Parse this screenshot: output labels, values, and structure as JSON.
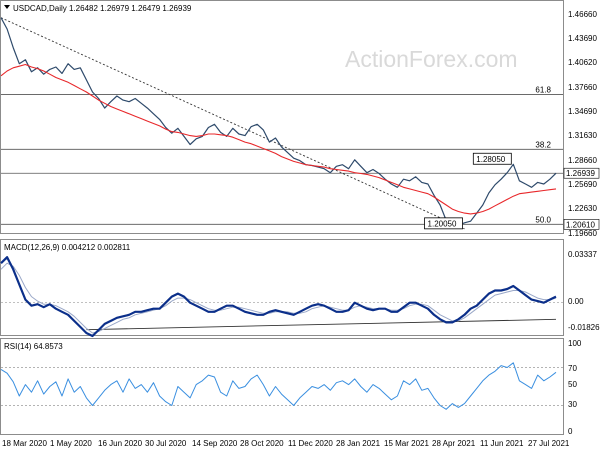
{
  "header": {
    "symbol_text": "USDCAD,Daily  1.26482 1.26979 1.26479 1.26939",
    "watermark": "ActionForex.com"
  },
  "chart_data": [
    {
      "type": "line",
      "title": "USDCAD,Daily  1.26482 1.26979 1.26479 1.26939",
      "series": [
        {
          "name": "price",
          "values": [
            1.462,
            1.448,
            1.425,
            1.405,
            1.41,
            1.395,
            1.4,
            1.392,
            1.398,
            1.401,
            1.393,
            1.405,
            1.398,
            1.4,
            1.385,
            1.37,
            1.362,
            1.35,
            1.358,
            1.365,
            1.36,
            1.358,
            1.362,
            1.356,
            1.35,
            1.343,
            1.336,
            1.326,
            1.319,
            1.325,
            1.315,
            1.305,
            1.312,
            1.315,
            1.326,
            1.33,
            1.32,
            1.315,
            1.325,
            1.318,
            1.316,
            1.327,
            1.33,
            1.323,
            1.308,
            1.313,
            1.302,
            1.295,
            1.288,
            1.285,
            1.28,
            1.279,
            1.277,
            1.275,
            1.27,
            1.278,
            1.28,
            1.275,
            1.286,
            1.278,
            1.27,
            1.274,
            1.269,
            1.262,
            1.256,
            1.252,
            1.262,
            1.26,
            1.265,
            1.258,
            1.256,
            1.242,
            1.23,
            1.211,
            1.208,
            1.205,
            1.208,
            1.21,
            1.22,
            1.23,
            1.245,
            1.255,
            1.262,
            1.27,
            1.2805,
            1.26,
            1.256,
            1.252,
            1.258,
            1.256,
            1.262,
            1.2694
          ]
        },
        {
          "name": "sma",
          "values": [
            1.39,
            1.396,
            1.4,
            1.402,
            1.404,
            1.401,
            1.399,
            1.396,
            1.392,
            1.388,
            1.385,
            1.382,
            1.378,
            1.374,
            1.37,
            1.365,
            1.36,
            1.356,
            1.352,
            1.349,
            1.346,
            1.343,
            1.34,
            1.337,
            1.334,
            1.331,
            1.328,
            1.324,
            1.321,
            1.32,
            1.318,
            1.316,
            1.315,
            1.316,
            1.318,
            1.318,
            1.317,
            1.316,
            1.314,
            1.311,
            1.308,
            1.306,
            1.303,
            1.3,
            1.297,
            1.294,
            1.29,
            1.287,
            1.284,
            1.282,
            1.28,
            1.279,
            1.278,
            1.277,
            1.275,
            1.274,
            1.273,
            1.272,
            1.27,
            1.269,
            1.268,
            1.266,
            1.264,
            1.261,
            1.258,
            1.255,
            1.252,
            1.25,
            1.248,
            1.246,
            1.244,
            1.24,
            1.235,
            1.23,
            1.225,
            1.222,
            1.22,
            1.219,
            1.22,
            1.222,
            1.225,
            1.229,
            1.233,
            1.237,
            1.241,
            1.244,
            1.245,
            1.246,
            1.247,
            1.248,
            1.249,
            1.25
          ]
        }
      ],
      "trendline": [
        {
          "x": 0,
          "y": 1.462
        },
        {
          "x": 76,
          "y": 1.2005
        }
      ],
      "hlines": [
        {
          "label": "61.8",
          "value": 1.367
        },
        {
          "label": "38.2",
          "value": 1.299
        },
        {
          "label": "",
          "value": 1.2694
        },
        {
          "label": "50.0",
          "value": 1.2061
        }
      ],
      "callouts": [
        {
          "label": "1.28050",
          "x": 84,
          "value": 1.2805
        },
        {
          "label": "1.20050",
          "x": 76,
          "value": 1.2005
        }
      ],
      "y_ticks": [
        "1.46660",
        "1.43690",
        "1.40620",
        "1.37660",
        "1.34690",
        "1.31630",
        "1.28660",
        "1.25690",
        "1.22630",
        "1.19660"
      ],
      "price_labels": [
        "1.26939",
        "1.20610"
      ],
      "ylim": [
        1.1966,
        1.4666
      ]
    },
    {
      "type": "line",
      "title": "MACD(12,26,9) 0.004212 0.002811",
      "series": [
        {
          "name": "macd",
          "values": [
            0.026,
            0.03,
            0.022,
            0.012,
            0.002,
            -0.002,
            -0.001,
            -0.003,
            -0.001,
            -0.004,
            -0.006,
            -0.008,
            -0.012,
            -0.016,
            -0.02,
            -0.022,
            -0.018,
            -0.014,
            -0.012,
            -0.01,
            -0.009,
            -0.008,
            -0.006,
            -0.006,
            -0.005,
            -0.004,
            -0.004,
            0.0,
            0.004,
            0.006,
            0.004,
            0.0,
            -0.002,
            -0.004,
            -0.006,
            -0.006,
            -0.004,
            -0.002,
            -0.002,
            -0.004,
            -0.006,
            -0.007,
            -0.008,
            -0.008,
            -0.006,
            -0.005,
            -0.006,
            -0.007,
            -0.008,
            -0.006,
            -0.004,
            -0.002,
            -0.001,
            -0.002,
            -0.004,
            -0.006,
            -0.006,
            -0.005,
            0.0,
            -0.002,
            -0.004,
            -0.005,
            -0.004,
            -0.004,
            -0.006,
            -0.006,
            -0.003,
            0.0,
            0.0,
            -0.002,
            -0.004,
            -0.008,
            -0.011,
            -0.013,
            -0.013,
            -0.011,
            -0.008,
            -0.004,
            -0.002,
            0.002,
            0.006,
            0.008,
            0.008,
            0.009,
            0.011,
            0.008,
            0.005,
            0.002,
            0.001,
            0.0,
            0.002,
            0.004
          ]
        },
        {
          "name": "signal",
          "values": [
            0.022,
            0.026,
            0.024,
            0.018,
            0.01,
            0.004,
            0.001,
            -0.001,
            -0.001,
            -0.002,
            -0.004,
            -0.006,
            -0.009,
            -0.013,
            -0.017,
            -0.02,
            -0.019,
            -0.017,
            -0.015,
            -0.013,
            -0.011,
            -0.01,
            -0.008,
            -0.007,
            -0.006,
            -0.005,
            -0.004,
            -0.002,
            0.001,
            0.003,
            0.003,
            0.002,
            0.0,
            -0.002,
            -0.004,
            -0.005,
            -0.005,
            -0.004,
            -0.003,
            -0.003,
            -0.004,
            -0.005,
            -0.006,
            -0.007,
            -0.007,
            -0.006,
            -0.006,
            -0.006,
            -0.007,
            -0.007,
            -0.006,
            -0.004,
            -0.003,
            -0.002,
            -0.003,
            -0.004,
            -0.005,
            -0.005,
            -0.003,
            -0.002,
            -0.003,
            -0.004,
            -0.004,
            -0.004,
            -0.005,
            -0.005,
            -0.004,
            -0.002,
            -0.001,
            -0.001,
            -0.002,
            -0.005,
            -0.008,
            -0.01,
            -0.012,
            -0.012,
            -0.01,
            -0.007,
            -0.004,
            -0.001,
            0.002,
            0.005,
            0.006,
            0.007,
            0.008,
            0.008,
            0.007,
            0.005,
            0.003,
            0.002,
            0.002,
            0.003
          ]
        }
      ],
      "trendline": [
        {
          "x": 14,
          "y": -0.0178
        },
        {
          "x": 91,
          "y": -0.011
        }
      ],
      "y_ticks": [
        "0.03337",
        "0.00",
        "-0.018262"
      ],
      "ylim": [
        -0.02,
        0.0334
      ]
    },
    {
      "type": "line",
      "title": "RSI(14) 64.8573",
      "series": [
        {
          "name": "rsi",
          "values": [
            68,
            64,
            55,
            40,
            52,
            44,
            56,
            42,
            50,
            55,
            40,
            58,
            44,
            50,
            38,
            30,
            38,
            46,
            52,
            56,
            44,
            58,
            48,
            52,
            44,
            54,
            40,
            34,
            30,
            50,
            44,
            38,
            52,
            56,
            62,
            60,
            44,
            40,
            56,
            48,
            50,
            58,
            62,
            52,
            40,
            50,
            42,
            36,
            30,
            38,
            44,
            50,
            48,
            52,
            46,
            54,
            56,
            52,
            58,
            50,
            44,
            52,
            48,
            42,
            36,
            40,
            56,
            52,
            58,
            46,
            48,
            38,
            30,
            26,
            32,
            28,
            32,
            40,
            48,
            56,
            62,
            66,
            72,
            70,
            75,
            56,
            52,
            48,
            62,
            56,
            60,
            65
          ]
        }
      ],
      "y_ticks": [
        "100",
        "70",
        "50",
        "30",
        "0"
      ],
      "ylim": [
        0,
        100
      ]
    }
  ],
  "x_axis": {
    "ticks": [
      "18 Mar 2020",
      "1 May 2020",
      "16 Jun 2020",
      "30 Jul 2020",
      "14 Sep 2020",
      "28 Oct 2020",
      "11 Dec 2020",
      "28 Jan 2021",
      "15 Mar 2021",
      "28 Apr 2021",
      "11 Jun 2021",
      "27 Jul 2021"
    ]
  },
  "colors": {
    "price": "#2e4a6b",
    "sma": "#e8282b",
    "macd": "#0b2f8a",
    "macd_signal": "#9aa8c8",
    "rsi": "#3a8fe0",
    "grid": "#cfcfcf",
    "dash": "#9a9a9a"
  }
}
